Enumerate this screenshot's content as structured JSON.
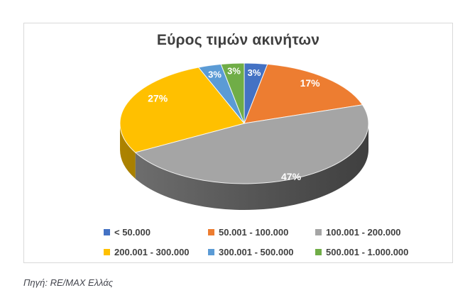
{
  "chart_data": {
    "type": "pie",
    "style": "3d",
    "title": "Εύρος τιμών ακινήτων",
    "categories": [
      "< 50.000",
      "50.001 - 100.000",
      "100.001 - 200.000",
      "200.001 - 300.000",
      "300.001 - 500.000",
      "500.001 - 1.000.000"
    ],
    "values": [
      3,
      17,
      47,
      27,
      3,
      3
    ],
    "unit": "%",
    "data_labels": [
      "3%",
      "17%",
      "47%",
      "27%",
      "3%",
      "3%"
    ],
    "colors": [
      "#4472C4",
      "#ED7D31",
      "#A5A5A5",
      "#FFC000",
      "#5B9BD5",
      "#70AD47"
    ],
    "start_angle_deg": 0,
    "direction": "clockwise",
    "legend_position": "bottom",
    "legend_rows": 2,
    "label_text_color": "#ffffff",
    "title_color": "#3f3f3f"
  },
  "source": {
    "text": "Πηγή: RE/MAX Ελλάς"
  }
}
